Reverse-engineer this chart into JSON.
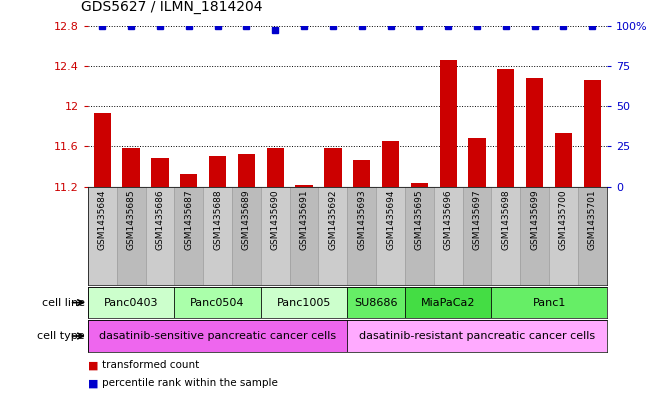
{
  "title": "GDS5627 / ILMN_1814204",
  "samples": [
    "GSM1435684",
    "GSM1435685",
    "GSM1435686",
    "GSM1435687",
    "GSM1435688",
    "GSM1435689",
    "GSM1435690",
    "GSM1435691",
    "GSM1435692",
    "GSM1435693",
    "GSM1435694",
    "GSM1435695",
    "GSM1435696",
    "GSM1435697",
    "GSM1435698",
    "GSM1435699",
    "GSM1435700",
    "GSM1435701"
  ],
  "bar_values": [
    11.93,
    11.58,
    11.48,
    11.33,
    11.5,
    11.52,
    11.58,
    11.22,
    11.58,
    11.46,
    11.65,
    11.24,
    12.46,
    11.68,
    12.37,
    12.28,
    11.73,
    12.26
  ],
  "percentile_values": [
    100,
    100,
    100,
    100,
    100,
    100,
    97,
    100,
    100,
    100,
    100,
    100,
    100,
    100,
    100,
    100,
    100,
    100
  ],
  "ylim_left": [
    11.2,
    12.8
  ],
  "ylim_right": [
    0,
    100
  ],
  "yticks_left": [
    11.2,
    11.6,
    12.0,
    12.4,
    12.8
  ],
  "ytick_labels_left": [
    "11.2",
    "11.6",
    "12",
    "12.4",
    "12.8"
  ],
  "yticks_right": [
    0,
    25,
    50,
    75,
    100
  ],
  "ytick_labels_right": [
    "0",
    "25",
    "50",
    "75",
    "100%"
  ],
  "cell_lines": [
    {
      "label": "Panc0403",
      "start": 0,
      "end": 3,
      "color": "#ccffcc"
    },
    {
      "label": "Panc0504",
      "start": 3,
      "end": 6,
      "color": "#aaffaa"
    },
    {
      "label": "Panc1005",
      "start": 6,
      "end": 9,
      "color": "#ccffcc"
    },
    {
      "label": "SU8686",
      "start": 9,
      "end": 11,
      "color": "#66ee66"
    },
    {
      "label": "MiaPaCa2",
      "start": 11,
      "end": 14,
      "color": "#44dd44"
    },
    {
      "label": "Panc1",
      "start": 14,
      "end": 18,
      "color": "#66ee66"
    }
  ],
  "cell_types": [
    {
      "label": "dasatinib-sensitive pancreatic cancer cells",
      "start": 0,
      "end": 9,
      "color": "#ee66ee"
    },
    {
      "label": "dasatinib-resistant pancreatic cancer cells",
      "start": 9,
      "end": 18,
      "color": "#ffaaff"
    }
  ],
  "bar_color": "#cc0000",
  "dot_color": "#0000cc",
  "bg_color": "#ffffff",
  "sample_bg_color": "#cccccc",
  "left_tick_color": "#cc0000",
  "right_tick_color": "#0000cc",
  "legend": [
    {
      "label": "transformed count",
      "color": "#cc0000"
    },
    {
      "label": "percentile rank within the sample",
      "color": "#0000cc"
    }
  ]
}
